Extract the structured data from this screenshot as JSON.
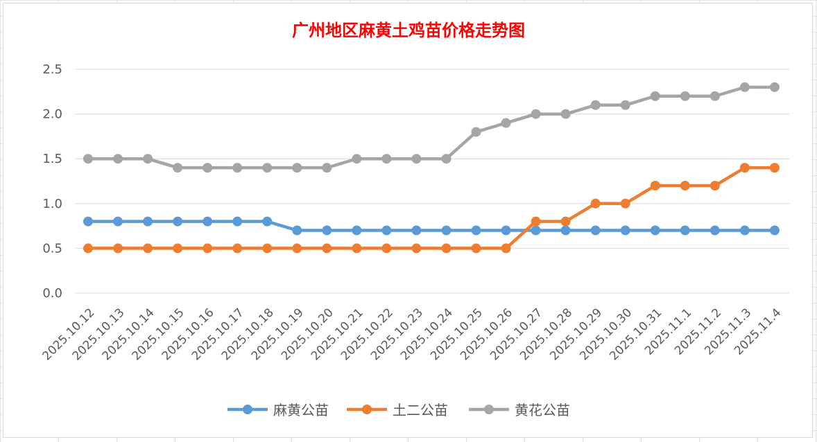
{
  "chart_data": {
    "type": "line",
    "title": "广州地区麻黄土鸡苗价格走势图",
    "xlabel": "",
    "ylabel": "",
    "categories": [
      "2025.10.12",
      "2025.10.13",
      "2025.10.14",
      "2025.10.15",
      "2025.10.16",
      "2025.10.17",
      "2025.10.18",
      "2025.10.19",
      "2025.10.20",
      "2025.10.21",
      "2025.10.22",
      "2025.10.23",
      "2025.10.24",
      "2025.10.25",
      "2025.10.26",
      "2025.10.27",
      "2025.10.28",
      "2025.10.29",
      "2025.10.30",
      "2025.10.31",
      "2025.11.1",
      "2025.11.2",
      "2025.11.3",
      "2025.11.4"
    ],
    "ylim": [
      0,
      2.5
    ],
    "yticks": [
      "0.0",
      "0.5",
      "1.0",
      "1.5",
      "2.0",
      "2.5"
    ],
    "grid": true,
    "legend_position": "bottom",
    "series": [
      {
        "name": "麻黄公苗",
        "color": "#5b9bd5",
        "values": [
          0.8,
          0.8,
          0.8,
          0.8,
          0.8,
          0.8,
          0.8,
          0.7,
          0.7,
          0.7,
          0.7,
          0.7,
          0.7,
          0.7,
          0.7,
          0.7,
          0.7,
          0.7,
          0.7,
          0.7,
          0.7,
          0.7,
          0.7,
          0.7
        ]
      },
      {
        "name": "土二公苗",
        "color": "#ed7d31",
        "values": [
          0.5,
          0.5,
          0.5,
          0.5,
          0.5,
          0.5,
          0.5,
          0.5,
          0.5,
          0.5,
          0.5,
          0.5,
          0.5,
          0.5,
          0.5,
          0.8,
          0.8,
          1.0,
          1.0,
          1.2,
          1.2,
          1.2,
          1.4,
          1.4
        ]
      },
      {
        "name": "黄花公苗",
        "color": "#a5a5a5",
        "values": [
          1.5,
          1.5,
          1.5,
          1.4,
          1.4,
          1.4,
          1.4,
          1.4,
          1.4,
          1.5,
          1.5,
          1.5,
          1.5,
          1.8,
          1.9,
          2.0,
          2.0,
          2.1,
          2.1,
          2.2,
          2.2,
          2.2,
          2.3,
          2.3
        ]
      }
    ]
  }
}
